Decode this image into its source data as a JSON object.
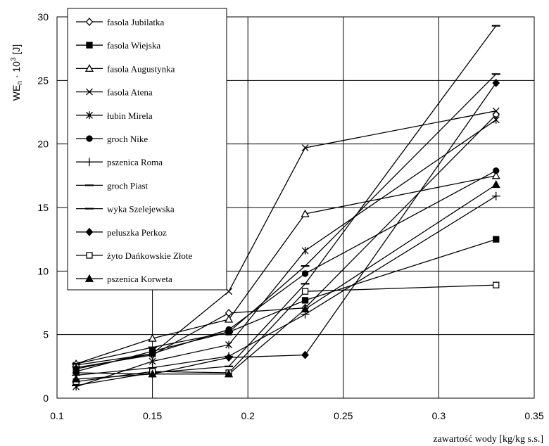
{
  "chart_data": {
    "type": "line",
    "xlabel": "zawartość wody [kg/kg s.s.]",
    "ylabel": {
      "main": "WE",
      "sub": "n",
      "mid": " · 10",
      "sup": "3",
      "unit": " [J]"
    },
    "xlim": [
      0.1,
      0.35
    ],
    "ylim": [
      0,
      30
    ],
    "xticks": [
      0.1,
      0.15,
      0.2,
      0.25,
      0.3,
      0.35
    ],
    "xtick_labels": [
      "0.1",
      "0.15",
      "0.2",
      "0.25",
      "0.3",
      "0.35"
    ],
    "yticks": [
      0,
      5,
      10,
      15,
      20,
      25,
      30
    ],
    "ytick_labels": [
      "0",
      "5",
      "10",
      "15",
      "20",
      "25",
      "30"
    ],
    "grid": true,
    "legend_position": "top-left",
    "series": [
      {
        "name": "fasola Jubilatka",
        "marker": "diamond-open",
        "x": [
          0.11,
          0.15,
          0.19,
          0.23,
          0.33
        ],
        "values": [
          2.4,
          3.4,
          6.7,
          7.1,
          22.3
        ]
      },
      {
        "name": "fasola Wiejska",
        "marker": "square-filled",
        "x": [
          0.11,
          0.15,
          0.19,
          0.23,
          0.33
        ],
        "values": [
          2.1,
          3.7,
          5.2,
          7.7,
          12.5
        ]
      },
      {
        "name": "fasola Augustynka",
        "marker": "triangle-open",
        "x": [
          0.11,
          0.15,
          0.19,
          0.23,
          0.33
        ],
        "values": [
          2.7,
          4.7,
          6.2,
          14.5,
          17.5
        ]
      },
      {
        "name": "fasola Atena",
        "marker": "x",
        "x": [
          0.11,
          0.15,
          0.19,
          0.23,
          0.33
        ],
        "values": [
          2.6,
          3.5,
          8.4,
          19.7,
          22.6
        ]
      },
      {
        "name": "łubin Mirela",
        "marker": "star",
        "x": [
          0.11,
          0.15,
          0.19,
          0.23,
          0.33
        ],
        "values": [
          0.9,
          2.9,
          4.2,
          11.6,
          21.9
        ]
      },
      {
        "name": "groch Nike",
        "marker": "circle-filled",
        "x": [
          0.11,
          0.15,
          0.19,
          0.23,
          0.33
        ],
        "values": [
          2.3,
          3.5,
          5.4,
          9.8,
          17.9
        ]
      },
      {
        "name": "pszenica Roma",
        "marker": "plus",
        "x": [
          0.11,
          0.15,
          0.19,
          0.23,
          0.33
        ],
        "values": [
          1.8,
          2.4,
          3.3,
          6.6,
          15.9
        ]
      },
      {
        "name": "groch Piast",
        "marker": "dash",
        "x": [
          0.11,
          0.15,
          0.19,
          0.23,
          0.33
        ],
        "values": [
          1.0,
          2.0,
          2.5,
          9.0,
          29.3
        ]
      },
      {
        "name": "wyka Szelejewska",
        "marker": "dash",
        "x": [
          0.11,
          0.15,
          0.19,
          0.23,
          0.33
        ],
        "values": [
          2.7,
          4.0,
          5.2,
          10.4,
          25.5
        ]
      },
      {
        "name": "peluszka Perkoz",
        "marker": "diamond-filled",
        "x": [
          0.11,
          0.15,
          0.19,
          0.23,
          0.33
        ],
        "values": [
          2.0,
          1.9,
          3.2,
          3.4,
          24.8
        ]
      },
      {
        "name": "żyto Dańkowskie Złote",
        "marker": "square-open",
        "x": [
          0.11,
          0.15,
          0.19,
          0.23,
          0.33
        ],
        "values": [
          1.3,
          2.1,
          2.0,
          8.4,
          8.9
        ]
      },
      {
        "name": "pszenica Korweta",
        "marker": "triangle-filled",
        "x": [
          0.11,
          0.15,
          0.19,
          0.23,
          0.33
        ],
        "values": [
          1.5,
          1.9,
          1.9,
          7.0,
          16.8
        ]
      }
    ]
  }
}
